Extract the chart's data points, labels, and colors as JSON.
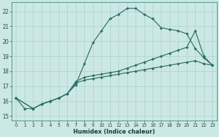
{
  "bg_color": "#cce8e4",
  "grid_color": "#aacfca",
  "line_color": "#2d7068",
  "xlabel": "Humidex (Indice chaleur)",
  "xlim": [
    -0.5,
    23.5
  ],
  "ylim": [
    14.7,
    22.6
  ],
  "yticks": [
    15,
    16,
    17,
    18,
    19,
    20,
    21,
    22
  ],
  "xticks": [
    0,
    1,
    2,
    3,
    4,
    5,
    6,
    7,
    8,
    9,
    10,
    11,
    12,
    13,
    14,
    15,
    16,
    17,
    18,
    19,
    20,
    21,
    22,
    23
  ],
  "line1_x": [
    0,
    1,
    2,
    3,
    4,
    5,
    6,
    7,
    8,
    9,
    10,
    11,
    12,
    13,
    14,
    15,
    16,
    17,
    18,
    19,
    20,
    21,
    22,
    23
  ],
  "line1_y": [
    16.2,
    15.5,
    15.5,
    15.8,
    16.0,
    16.2,
    16.5,
    17.1,
    18.5,
    19.9,
    20.7,
    21.5,
    21.8,
    22.2,
    22.2,
    21.8,
    21.5,
    20.9,
    20.8,
    20.7,
    20.5,
    19.5,
    18.9,
    18.4
  ],
  "line2_x": [
    0,
    2,
    3,
    4,
    5,
    6,
    7,
    8,
    9,
    10,
    11,
    12,
    13,
    14,
    15,
    16,
    17,
    18,
    19,
    20,
    21,
    22,
    23
  ],
  "line2_y": [
    16.2,
    15.5,
    15.8,
    16.0,
    16.2,
    16.5,
    17.3,
    17.6,
    17.7,
    17.8,
    17.9,
    18.0,
    18.2,
    18.4,
    18.6,
    18.8,
    19.0,
    19.2,
    19.4,
    19.6,
    20.7,
    19.0,
    18.4
  ],
  "line3_x": [
    0,
    2,
    3,
    4,
    5,
    6,
    7,
    8,
    9,
    10,
    11,
    12,
    13,
    14,
    15,
    16,
    17,
    18,
    19,
    20,
    21,
    22,
    23
  ],
  "line3_y": [
    16.2,
    15.5,
    15.8,
    16.0,
    16.2,
    16.5,
    17.2,
    17.4,
    17.5,
    17.6,
    17.7,
    17.8,
    17.9,
    18.0,
    18.1,
    18.2,
    18.3,
    18.4,
    18.5,
    18.6,
    18.7,
    18.5,
    18.4
  ]
}
